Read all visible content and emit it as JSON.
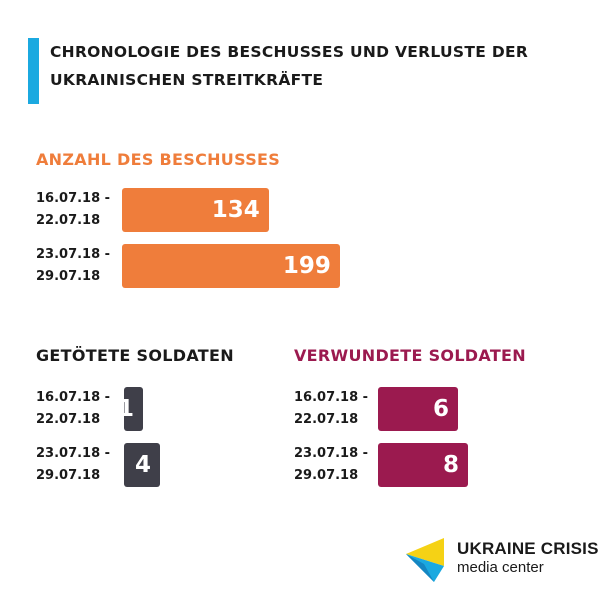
{
  "title": "Chronologie des Beschusses und Verluste der ukrainischen Streitkräfte",
  "colors": {
    "accent": "#1ba9e0",
    "shelling": "#ef7d3b",
    "killed": "#3f3f49",
    "wounded": "#9b1a4f"
  },
  "sections": {
    "shelling": {
      "heading": "Anzahl des Beschusses"
    },
    "killed": {
      "heading": "Getötete Soldaten"
    },
    "wounded": {
      "heading": "Verwundete Soldaten"
    }
  },
  "logo": {
    "line1": "UKRAINE CRISIS",
    "line2": "media center"
  },
  "chart_data": [
    {
      "type": "bar",
      "title": "Anzahl des Beschusses",
      "categories": [
        [
          "16.07.18 -",
          "22.07.18"
        ],
        [
          "23.07.18 -",
          "29.07.18"
        ]
      ],
      "values": [
        134,
        199
      ],
      "value_labels": [
        "134",
        "199"
      ]
    },
    {
      "type": "bar",
      "title": "Getötete Soldaten",
      "categories": [
        [
          "16.07.18 -",
          "22.07.18"
        ],
        [
          "23.07.18 -",
          "29.07.18"
        ]
      ],
      "values": [
        1,
        4
      ],
      "value_labels": [
        "1",
        "4"
      ]
    },
    {
      "type": "bar",
      "title": "Verwundete Soldaten",
      "categories": [
        [
          "16.07.18 -",
          "22.07.18"
        ],
        [
          "23.07.18 -",
          "29.07.18"
        ]
      ],
      "values": [
        6,
        8
      ],
      "value_labels": [
        "6",
        "8"
      ]
    }
  ]
}
